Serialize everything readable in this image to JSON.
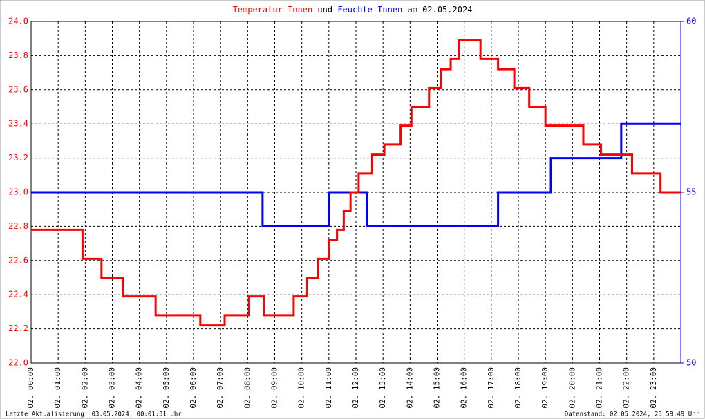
{
  "chart_data": {
    "type": "line",
    "step": true,
    "title_connector": "und",
    "title_date": "am 02.05.2024",
    "footer_left": "Letzte Aktualisierung: 03.05.2024, 00:01:31 Uhr",
    "footer_right": "Datenstand: 02.05.2024, 23:59:49 Uhr",
    "xlim": [
      0,
      24
    ],
    "ylim": [
      22,
      24
    ],
    "y2lim": [
      50,
      60
    ],
    "grid": true,
    "yticks": [
      {
        "value": 22,
        "label": "22.0"
      },
      22.2,
      22.4,
      22.6,
      22.8,
      {
        "value": 23,
        "label": "23.0"
      },
      23.2,
      23.4,
      23.6,
      23.8,
      {
        "value": 24,
        "label": "24.0"
      }
    ],
    "y2ticks": [
      50,
      55,
      60
    ],
    "xticks": [
      {
        "value": 0,
        "label": "02. 00:00"
      },
      {
        "value": 1,
        "label": "02. 01:00"
      },
      {
        "value": 2,
        "label": "02. 02:00"
      },
      {
        "value": 3,
        "label": "02. 03:00"
      },
      {
        "value": 4,
        "label": "02. 04:00"
      },
      {
        "value": 5,
        "label": "02. 05:00"
      },
      {
        "value": 6,
        "label": "02. 06:00"
      },
      {
        "value": 7,
        "label": "02. 07:00"
      },
      {
        "value": 8,
        "label": "02. 08:00"
      },
      {
        "value": 9,
        "label": "02. 09:00"
      },
      {
        "value": 10,
        "label": "02. 10:00"
      },
      {
        "value": 11,
        "label": "02. 11:00"
      },
      {
        "value": 12,
        "label": "02. 12:00"
      },
      {
        "value": 13,
        "label": "02. 13:00"
      },
      {
        "value": 14,
        "label": "02. 14:00"
      },
      {
        "value": 15,
        "label": "02. 15:00"
      },
      {
        "value": 16,
        "label": "02. 16:00"
      },
      {
        "value": 17,
        "label": "02. 17:00"
      },
      {
        "value": 18,
        "label": "02. 18:00"
      },
      {
        "value": 19,
        "label": "02. 19:00"
      },
      {
        "value": 20,
        "label": "02. 20:00"
      },
      {
        "value": 21,
        "label": "02. 21:00"
      },
      {
        "value": 22,
        "label": "02. 22:00"
      },
      {
        "value": 23,
        "label": "02. 23:00"
      }
    ],
    "series": [
      {
        "name": "Temperatur Innen",
        "color": "#ff0000",
        "axis": "y",
        "x": [
          0,
          1.9,
          2.6,
          3.4,
          4.6,
          6.25,
          7.15,
          8.05,
          8.6,
          9.7,
          10.2,
          10.6,
          11.0,
          11.3,
          11.55,
          11.8,
          12.1,
          12.6,
          13.05,
          13.65,
          14.05,
          14.7,
          15.15,
          15.5,
          15.8,
          16.6,
          17.25,
          17.85,
          18.4,
          19.0,
          20.4,
          21.05,
          22.2,
          23.25,
          24.0
        ],
        "values": [
          22.78,
          22.61,
          22.5,
          22.39,
          22.28,
          22.22,
          22.28,
          22.39,
          22.28,
          22.39,
          22.5,
          22.61,
          22.72,
          22.78,
          22.89,
          23.0,
          23.11,
          23.22,
          23.28,
          23.39,
          23.5,
          23.61,
          23.72,
          23.78,
          23.89,
          23.78,
          23.72,
          23.61,
          23.5,
          23.39,
          23.28,
          23.22,
          23.11,
          23.0,
          23.0
        ]
      },
      {
        "name": "Feuchte Innen",
        "color": "#0000ff",
        "axis": "y2",
        "x": [
          0,
          8.55,
          11.0,
          12.4,
          17.25,
          19.2,
          21.8,
          24.0
        ],
        "values": [
          55,
          54,
          55,
          54,
          55,
          56,
          57,
          57
        ]
      }
    ]
  }
}
